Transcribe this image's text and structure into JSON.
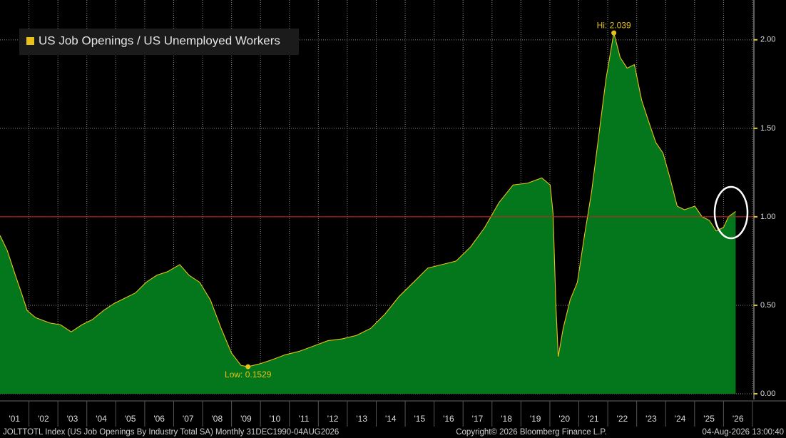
{
  "chart_data": {
    "type": "area",
    "series": [
      {
        "name": "US Job Openings / US Unemployed Workers",
        "color": "#e8c21a",
        "fill": "#04761c",
        "x": [
          2001.0,
          2001.25,
          2001.49,
          2001.74,
          2001.94,
          2002.23,
          2002.72,
          2003.09,
          2003.46,
          2003.83,
          2004.2,
          2004.57,
          2004.94,
          2005.31,
          2005.68,
          2006.05,
          2006.42,
          2006.79,
          2007.21,
          2007.53,
          2007.9,
          2008.27,
          2008.64,
          2009.0,
          2009.33,
          2009.57,
          2009.99,
          2010.36,
          2010.85,
          2011.34,
          2011.84,
          2012.33,
          2012.82,
          2013.32,
          2013.81,
          2014.3,
          2014.79,
          2015.29,
          2015.78,
          2016.27,
          2016.76,
          2017.26,
          2017.75,
          2018.24,
          2018.73,
          2019.23,
          2019.72,
          2020.01,
          2020.11,
          2020.21,
          2020.29,
          2020.46,
          2020.7,
          2020.95,
          2021.2,
          2021.44,
          2021.69,
          2021.94,
          2022.21,
          2022.43,
          2022.67,
          2022.92,
          2023.17,
          2023.41,
          2023.66,
          2023.91,
          2024.15,
          2024.4,
          2024.65,
          2025.01,
          2025.26,
          2025.51,
          2025.75,
          2026.0,
          2026.17,
          2026.42
        ],
        "values": [
          0.895,
          0.81,
          0.69,
          0.57,
          0.47,
          0.43,
          0.4,
          0.39,
          0.35,
          0.39,
          0.42,
          0.47,
          0.51,
          0.54,
          0.57,
          0.63,
          0.67,
          0.69,
          0.73,
          0.67,
          0.63,
          0.53,
          0.37,
          0.23,
          0.16,
          0.1529,
          0.17,
          0.19,
          0.22,
          0.24,
          0.27,
          0.3,
          0.31,
          0.33,
          0.37,
          0.45,
          0.55,
          0.63,
          0.71,
          0.73,
          0.75,
          0.83,
          0.94,
          1.08,
          1.18,
          1.19,
          1.22,
          1.18,
          1.02,
          0.49,
          0.21,
          0.37,
          0.53,
          0.63,
          0.9,
          1.14,
          1.46,
          1.78,
          2.039,
          1.9,
          1.84,
          1.86,
          1.66,
          1.54,
          1.42,
          1.36,
          1.22,
          1.06,
          1.04,
          1.06,
          1.0,
          0.98,
          0.92,
          0.94,
          1.0,
          1.03
        ]
      }
    ],
    "annotations": [
      {
        "text": "Hi: 2.039",
        "x": 2022.21,
        "y": 2.039
      },
      {
        "text": "Low: 0.1529",
        "x": 2009.57,
        "y": 0.1529
      }
    ],
    "reference_line": {
      "y": 1,
      "color": "#d42020"
    },
    "xlim": [
      2001,
      2027.05
    ],
    "xticks": [
      {
        "value": 2001.5,
        "label": "'01"
      },
      {
        "value": 2002.5,
        "label": "'02"
      },
      {
        "value": 2003.5,
        "label": "'03"
      },
      {
        "value": 2004.5,
        "label": "'04"
      },
      {
        "value": 2005.5,
        "label": "'05"
      },
      {
        "value": 2006.5,
        "label": "'06"
      },
      {
        "value": 2007.5,
        "label": "'07"
      },
      {
        "value": 2008.5,
        "label": "'08"
      },
      {
        "value": 2009.5,
        "label": "'09"
      },
      {
        "value": 2010.5,
        "label": "'10"
      },
      {
        "value": 2011.5,
        "label": "'11"
      },
      {
        "value": 2012.5,
        "label": "'12"
      },
      {
        "value": 2013.5,
        "label": "'13"
      },
      {
        "value": 2014.5,
        "label": "'14"
      },
      {
        "value": 2015.5,
        "label": "'15"
      },
      {
        "value": 2016.5,
        "label": "'16"
      },
      {
        "value": 2017.5,
        "label": "'17"
      },
      {
        "value": 2018.5,
        "label": "'18"
      },
      {
        "value": 2019.5,
        "label": "'19"
      },
      {
        "value": 2020.5,
        "label": "'20"
      },
      {
        "value": 2021.5,
        "label": "'21"
      },
      {
        "value": 2022.5,
        "label": "'22"
      },
      {
        "value": 2023.5,
        "label": "'23"
      },
      {
        "value": 2024.5,
        "label": "'24"
      },
      {
        "value": 2025.5,
        "label": "'25"
      },
      {
        "value": 2026.5,
        "label": "'26"
      }
    ],
    "ylim": [
      0,
      2.225
    ],
    "yticks": [
      {
        "value": 0,
        "label": "0.00"
      },
      {
        "value": 0.5,
        "label": "0.50"
      },
      {
        "value": 1,
        "label": "1.00"
      },
      {
        "value": 1.5,
        "label": "1.50"
      },
      {
        "value": 2,
        "label": "2.00"
      }
    ],
    "grid": true,
    "footer": {
      "source": "JOLTTOTL Index (US Job Openings By Industry Total SA) Monthly 31DEC1990-04AUG2026",
      "copyright": "Copyright© 2026 Bloomberg Finance L.P.",
      "timestamp": "04-Aug-2026 13:00:40"
    }
  }
}
